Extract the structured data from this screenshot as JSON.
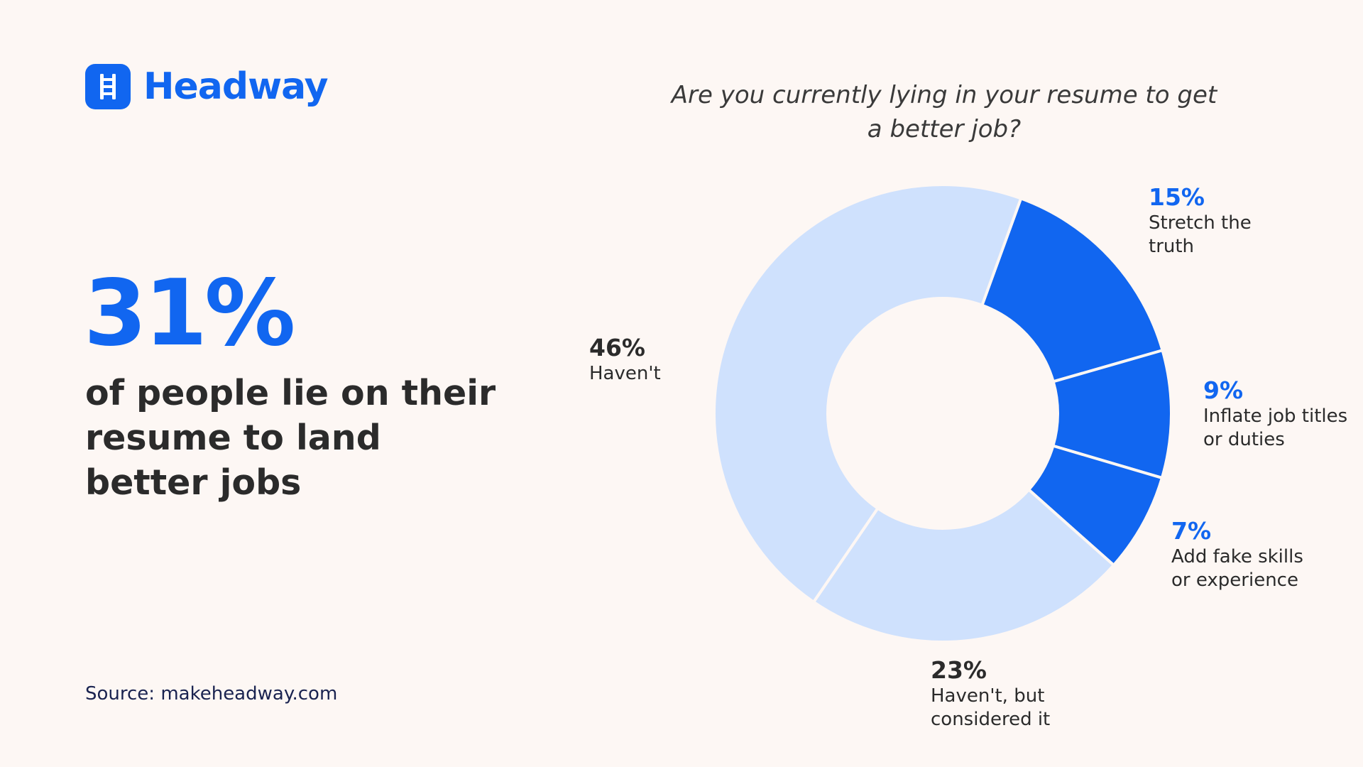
{
  "brand": {
    "name": "Headway",
    "icon": "ladder-icon",
    "color": "#1166f0"
  },
  "headline": {
    "value": "31%",
    "text": "of people lie on their resume to land better jobs"
  },
  "source": "Source: makeheadway.com",
  "chart_data": {
    "type": "pie",
    "title": "Are you currently lying in your resume to get a better job?",
    "slices": [
      {
        "pct_label": "15%",
        "label": "Stretch the truth",
        "value": 15,
        "color": "#1166f0"
      },
      {
        "pct_label": "9%",
        "label": "Inflate job titles or duties",
        "value": 9,
        "color": "#1166f0"
      },
      {
        "pct_label": "7%",
        "label": "Add fake skills or experience",
        "value": 7,
        "color": "#1166f0"
      },
      {
        "pct_label": "23%",
        "label": "Haven't, but considered it",
        "value": 23,
        "color": "#cfe1fd"
      },
      {
        "pct_label": "46%",
        "label": "Haven't",
        "value": 46,
        "color": "#cfe1fd"
      }
    ]
  }
}
